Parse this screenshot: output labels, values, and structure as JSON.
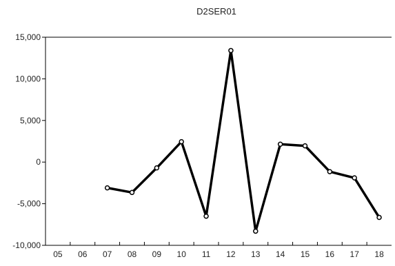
{
  "chart_data": {
    "type": "line",
    "title": "D2SER01",
    "categories": [
      "05",
      "06",
      "07",
      "08",
      "09",
      "10",
      "11",
      "12",
      "13",
      "14",
      "15",
      "16",
      "17",
      "18"
    ],
    "series": [
      {
        "values": [
          null,
          null,
          -3100,
          -3650,
          -700,
          2450,
          -6500,
          13400,
          -8300,
          2150,
          1950,
          -1150,
          -1900,
          -6650
        ]
      }
    ],
    "ylim": [
      -10000,
      15000
    ],
    "yticks": [
      15000,
      10000,
      5000,
      0,
      -5000,
      -10000
    ],
    "ytick_labels": [
      "15,000",
      "10,000",
      "5,000",
      "0",
      "-5,000",
      "-10,000"
    ],
    "grid": false,
    "line_color": "#000000",
    "marker_fill": "#ffffff"
  }
}
